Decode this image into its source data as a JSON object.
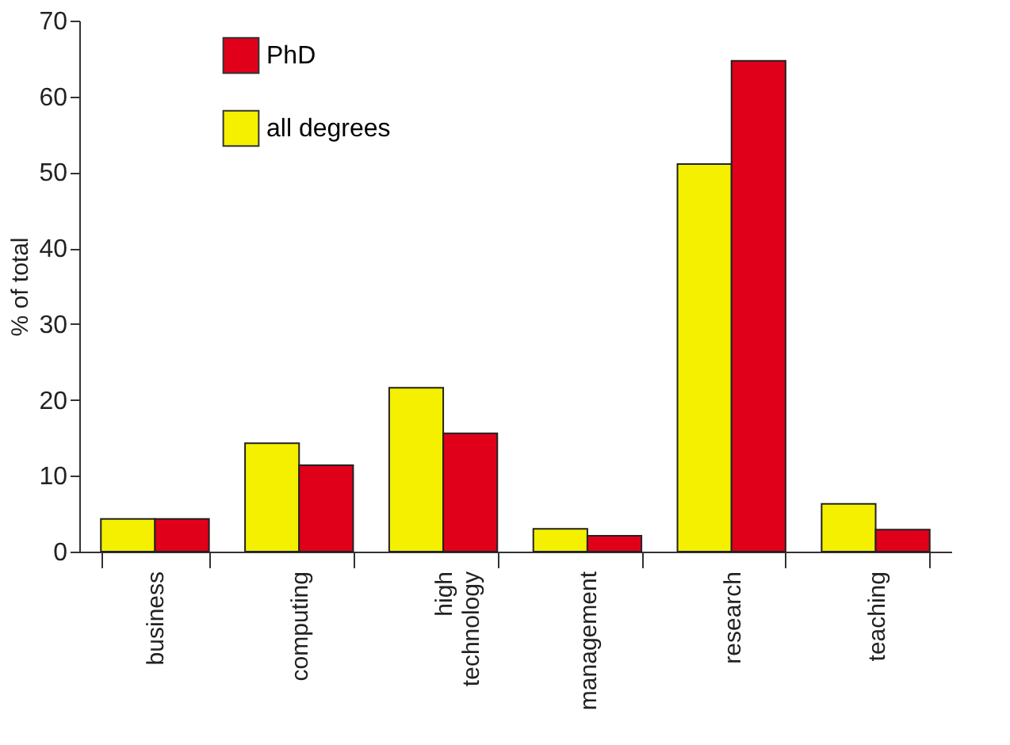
{
  "chart_data": {
    "type": "bar",
    "ylabel": "% of total",
    "categories": [
      "business",
      "computing",
      "high technology",
      "management",
      "research",
      "teaching"
    ],
    "series": [
      {
        "name": "all degrees",
        "color": "#f5f000",
        "values": [
          4.3,
          14.3,
          21.6,
          3.0,
          51.1,
          6.3
        ]
      },
      {
        "name": "PhD",
        "color": "#e0001a",
        "values": [
          4.3,
          11.4,
          15.6,
          2.1,
          64.7,
          2.9
        ]
      }
    ],
    "ylim": [
      0,
      70
    ],
    "yticks": [
      0,
      10,
      20,
      30,
      40,
      50,
      60,
      70
    ],
    "grid": false,
    "legend": "top left"
  }
}
